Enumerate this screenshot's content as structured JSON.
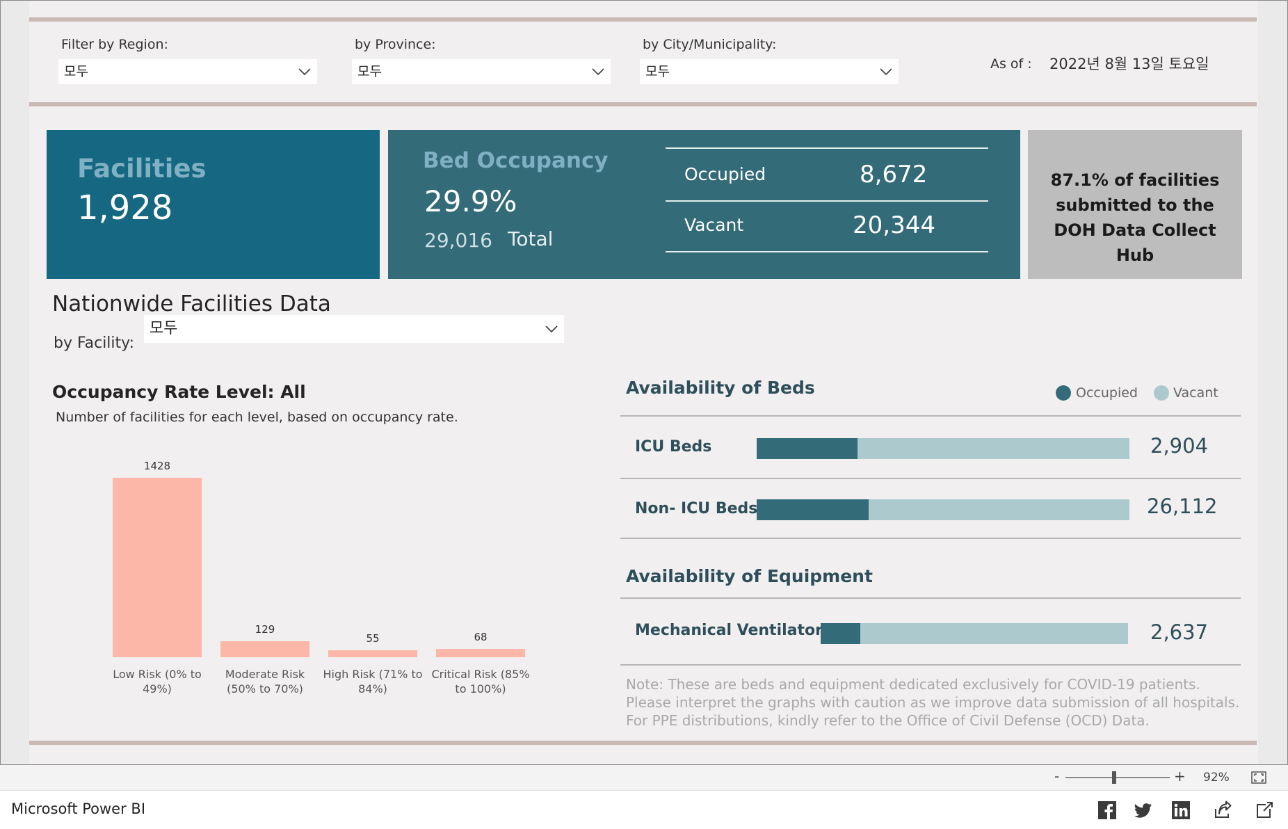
{
  "filters": {
    "region_label": "Filter by Region:",
    "region_value": "모두",
    "province_label": "by Province:",
    "province_value": "모두",
    "city_label": "by City/Municipality:",
    "city_value": "모두",
    "asof_label": "As of :",
    "asof_value": "2022년 8월 13일 토요일"
  },
  "kpi": {
    "facilities_title": "Facilities",
    "facilities_value": "1,928",
    "bed_title": "Bed Occupancy",
    "bed_rate": "29.9%",
    "bed_total": "29,016",
    "bed_total_label": "Total",
    "occupied_label": "Occupied",
    "occupied_value": "8,672",
    "vacant_label": "Vacant",
    "vacant_value": "20,344",
    "submitted_text": "87.1% of facilities submitted to the DOH Data Collect Hub"
  },
  "nationwide": {
    "title": "Nationwide Facilities Data",
    "facility_label": "by Facility:",
    "facility_value": "모두"
  },
  "occupancy": {
    "title": "Occupancy Rate Level: All",
    "subtitle": "Number of facilities for each level, based on occupancy rate."
  },
  "chart_data": {
    "type": "bar",
    "categories": [
      "Low Risk (0% to 49%)",
      "Moderate Risk (50% to 70%)",
      "High Risk (71% to 84%)",
      "Critical Risk (85% to 100%)"
    ],
    "values": [
      1428,
      129,
      55,
      68
    ],
    "title": "Occupancy Rate Level: All",
    "xlabel": "",
    "ylabel": "",
    "color": "#fdb7a8"
  },
  "beds": {
    "title": "Availability of Beds",
    "legend_occupied": "Occupied",
    "legend_vacant": "Vacant",
    "color_occupied": "#336b78",
    "color_vacant": "#acc9cd",
    "rows": [
      {
        "label": "ICU Beds",
        "total": "2,904",
        "occupied_fraction": 0.27
      },
      {
        "label": "Non- ICU Beds",
        "total": "26,112",
        "occupied_fraction": 0.3
      }
    ]
  },
  "equipment": {
    "title": "Availability of Equipment",
    "rows": [
      {
        "label": "Mechanical Ventilators",
        "total": "2,637",
        "occupied_fraction": 0.13
      }
    ]
  },
  "note": "Note: These are beds and equipment dedicated exclusively for COVID-19 patients. Please interpret the graphs with caution as we improve data submission of all hospitals. For PPE distributions, kindly refer to the Office of Civil Defense (OCD) Data.",
  "zoom": {
    "minus": "-",
    "plus": "+",
    "level": "92%"
  },
  "footer": {
    "brand": "Microsoft Power BI"
  },
  "icons": [
    "chevron-down-icon",
    "facebook-icon",
    "twitter-icon",
    "linkedin-icon",
    "share-icon",
    "popout-icon",
    "fit-to-page-icon"
  ]
}
